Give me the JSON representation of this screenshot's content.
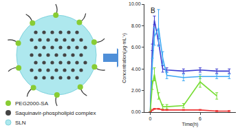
{
  "diagram": {
    "legend": [
      {
        "label": "PEG2000-SA",
        "color": "#88cc33"
      },
      {
        "label": "Saquinavir-phospholipid complex",
        "color": "#444444"
      },
      {
        "label": "SLN",
        "color": "#aee8ee"
      }
    ]
  },
  "chart_data": {
    "type": "line",
    "title": "B",
    "x_label": "Time(h)",
    "y_label": "Concentration(μg·mL⁻¹)",
    "x": [
      0,
      0.25,
      0.5,
      1,
      1.5,
      2,
      4,
      6,
      8,
      9.5
    ],
    "series": [
      {
        "color": "#3b3bd0",
        "values": [
          0,
          6.0,
          8.5,
          6.5,
          4.0,
          3.9,
          3.8,
          3.9,
          3.8,
          3.8
        ],
        "errors": [
          0,
          0.3,
          0.4,
          0.3,
          0.3,
          0.2,
          0.2,
          0.2,
          0.2,
          0.2
        ]
      },
      {
        "color": "#3fa9f5",
        "values": [
          0,
          4.5,
          7.0,
          7.8,
          5.0,
          3.4,
          3.2,
          3.3,
          3.3,
          3.3
        ],
        "errors": [
          0,
          0.5,
          0.8,
          1.7,
          0.6,
          0.3,
          0.3,
          0.2,
          0.2,
          0.2
        ]
      },
      {
        "color": "#77dd33",
        "values": [
          0,
          2.5,
          3.5,
          1.5,
          0.5,
          0.5,
          0.6,
          2.8,
          1.5,
          null
        ],
        "errors": [
          0,
          0.4,
          0.6,
          0.3,
          0.2,
          0.2,
          0.2,
          0.5,
          0.3,
          null
        ]
      },
      {
        "color": "#ee3333",
        "values": [
          0,
          0.2,
          0.3,
          0.3,
          0.2,
          0.2,
          0.2,
          0.2,
          0.1,
          0.1
        ],
        "errors": [
          0,
          0.05,
          0.05,
          0.05,
          0.05,
          0.05,
          0.05,
          0.05,
          0.05,
          0.05
        ]
      }
    ],
    "marker": "none",
    "grid": false,
    "xlim": [
      -0.7,
      10.3
    ],
    "xticks": [
      0,
      6
    ],
    "ylim": [
      0,
      10
    ],
    "yticks": [
      {
        "value": 0,
        "label": "0.00"
      },
      {
        "value": 2,
        "label": "2.00"
      },
      {
        "value": 4,
        "label": "4.00"
      },
      {
        "value": 6,
        "label": "6.00"
      },
      {
        "value": 8,
        "label": "8.00"
      },
      {
        "value": 10,
        "label": "10.00"
      }
    ]
  }
}
